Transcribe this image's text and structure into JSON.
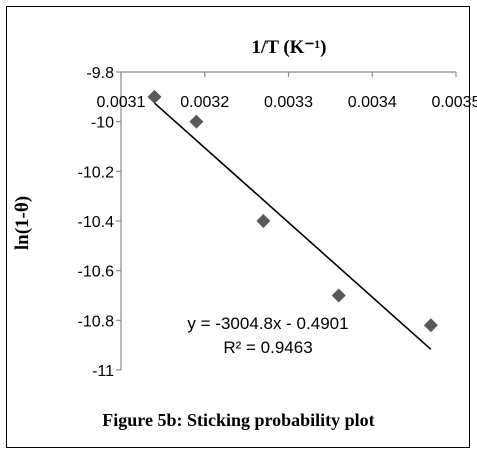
{
  "figure": {
    "caption": "Figure 5b: Sticking probability plot"
  },
  "chart_data": {
    "type": "scatter",
    "title": "",
    "xlabel": "1/T (K⁻¹)",
    "ylabel": "ln(1-θ)",
    "xlim": [
      0.0031,
      0.0035
    ],
    "ylim": [
      -11,
      -9.8
    ],
    "x_ticks": [
      0.0031,
      0.0032,
      0.0033,
      0.0034,
      0.0035
    ],
    "x_tick_labels": [
      "0.0031",
      "0.0032",
      "0.0033",
      "0.0034",
      "0.0035"
    ],
    "y_ticks": [
      -9.8,
      -10,
      -10.2,
      -10.4,
      -10.6,
      -10.8,
      -11
    ],
    "y_tick_labels": [
      "-9.8",
      "-10",
      "-10.2",
      "-10.4",
      "-10.6",
      "-10.8",
      "-11"
    ],
    "grid": false,
    "x_axis_position": "top",
    "series": [
      {
        "marker": "diamond",
        "color": "#595959",
        "points": [
          {
            "x": 0.00314,
            "y": -9.9
          },
          {
            "x": 0.00319,
            "y": -10.0
          },
          {
            "x": 0.00327,
            "y": -10.4
          },
          {
            "x": 0.00336,
            "y": -10.7
          },
          {
            "x": 0.00347,
            "y": -10.82
          }
        ]
      }
    ],
    "trendline": {
      "type": "linear",
      "slope": -3004.8,
      "intercept": -0.4901,
      "color": "#000000",
      "equation_label": "y = -3004.8x - 0.4901",
      "r2_label": "R² = 0.9463"
    }
  }
}
